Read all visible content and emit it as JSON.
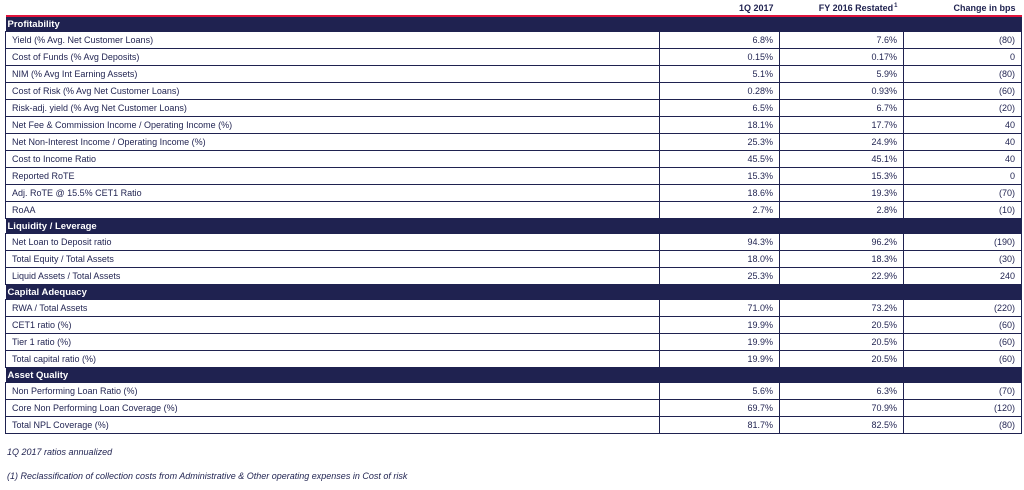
{
  "header": {
    "col_q": "1Q 2017",
    "col_fy": "FY 2016 Restated",
    "col_fy_sup": "1",
    "col_change": "Change in bps"
  },
  "sections": [
    {
      "title": "Profitability",
      "rows": [
        {
          "label": "Yield (% Avg. Net Customer Loans)",
          "q": "6.8%",
          "fy": "7.6%",
          "chg": "(80)"
        },
        {
          "label": "Cost of Funds (% Avg Deposits)",
          "q": "0.15%",
          "fy": "0.17%",
          "chg": "0"
        },
        {
          "label": "NIM (% Avg Int Earning Assets)",
          "q": "5.1%",
          "fy": "5.9%",
          "chg": "(80)"
        },
        {
          "label": "Cost of Risk (% Avg Net Customer Loans)",
          "q": "0.28%",
          "fy": "0.93%",
          "chg": "(60)"
        },
        {
          "label": "Risk-adj. yield (% Avg Net Customer Loans)",
          "q": "6.5%",
          "fy": "6.7%",
          "chg": "(20)"
        },
        {
          "label": "Net Fee & Commission Income / Operating Income (%)",
          "q": "18.1%",
          "fy": "17.7%",
          "chg": "40"
        },
        {
          "label": "Net Non-Interest Income / Operating Income (%)",
          "q": "25.3%",
          "fy": "24.9%",
          "chg": "40"
        },
        {
          "label": "Cost to Income Ratio",
          "q": "45.5%",
          "fy": "45.1%",
          "chg": "40"
        },
        {
          "label": "Reported RoTE",
          "q": "15.3%",
          "fy": "15.3%",
          "chg": "0"
        },
        {
          "label": "Adj. RoTE @ 15.5% CET1 Ratio",
          "q": "18.6%",
          "fy": "19.3%",
          "chg": "(70)"
        },
        {
          "label": "RoAA",
          "q": "2.7%",
          "fy": "2.8%",
          "chg": "(10)"
        }
      ]
    },
    {
      "title": "Liquidity / Leverage",
      "rows": [
        {
          "label": "Net Loan to Deposit ratio",
          "q": "94.3%",
          "fy": "96.2%",
          "chg": "(190)"
        },
        {
          "label": "Total Equity / Total Assets",
          "q": "18.0%",
          "fy": "18.3%",
          "chg": "(30)"
        },
        {
          "label": "Liquid Assets / Total Assets",
          "q": "25.3%",
          "fy": "22.9%",
          "chg": "240"
        }
      ]
    },
    {
      "title": "Capital Adequacy",
      "rows": [
        {
          "label": "RWA / Total Assets",
          "q": "71.0%",
          "fy": "73.2%",
          "chg": "(220)"
        },
        {
          "label": "CET1 ratio (%)",
          "q": "19.9%",
          "fy": "20.5%",
          "chg": "(60)"
        },
        {
          "label": "Tier 1 ratio (%)",
          "q": "19.9%",
          "fy": "20.5%",
          "chg": "(60)"
        },
        {
          "label": "Total capital ratio (%)",
          "q": "19.9%",
          "fy": "20.5%",
          "chg": "(60)"
        }
      ]
    },
    {
      "title": "Asset Quality",
      "rows": [
        {
          "label": "Non Performing Loan Ratio (%)",
          "q": "5.6%",
          "fy": "6.3%",
          "chg": "(70)"
        },
        {
          "label": "Core Non Performing Loan Coverage (%)",
          "q": "69.7%",
          "fy": "70.9%",
          "chg": "(120)"
        },
        {
          "label": "Total NPL Coverage (%)",
          "q": "81.7%",
          "fy": "82.5%",
          "chg": "(80)"
        }
      ]
    }
  ],
  "footnotes": {
    "note_1": "1Q 2017 ratios annualized",
    "note_2": "(1) Reclassification of collection costs from Administrative & Other operating expenses in Cost of risk"
  },
  "colors": {
    "section_bg": "#1f2250",
    "text": "#1f2250",
    "header_rule": "#e0143c"
  }
}
